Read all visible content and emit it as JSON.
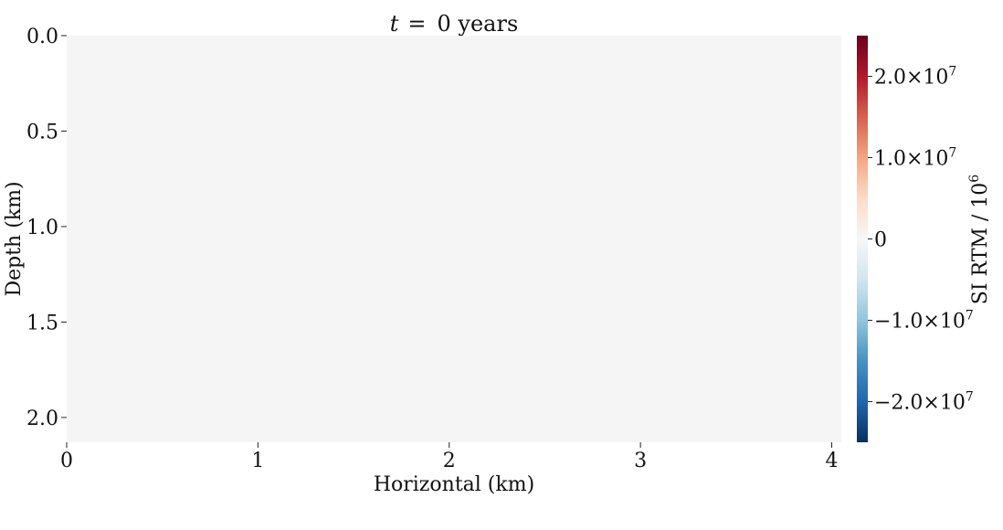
{
  "chart_data": {
    "type": "heatmap",
    "title": "t = 0 years",
    "title_parts": {
      "variable": "t",
      "equals": "=",
      "value_text": "0 years"
    },
    "xlabel": "Horizontal (km)",
    "ylabel": "Depth (km)",
    "xlim": [
      0,
      4.05
    ],
    "ylim": [
      0,
      2.13
    ],
    "y_inverted": true,
    "x_ticks": [
      {
        "value": 0,
        "label": "0"
      },
      {
        "value": 1,
        "label": "1"
      },
      {
        "value": 2,
        "label": "2"
      },
      {
        "value": 3,
        "label": "3"
      },
      {
        "value": 4,
        "label": "4"
      }
    ],
    "y_ticks": [
      {
        "value": 0.0,
        "label": "0.0"
      },
      {
        "value": 0.5,
        "label": "0.5"
      },
      {
        "value": 1.0,
        "label": "1.0"
      },
      {
        "value": 1.5,
        "label": "1.5"
      },
      {
        "value": 2.0,
        "label": "2.0"
      }
    ],
    "field": {
      "description": "uniform field",
      "value": 0,
      "color": "#f5f5f5"
    },
    "colorbar": {
      "label": "SI RTM / 10⁶",
      "label_parts": {
        "base": "SI RTM / 10",
        "exponent": "6"
      },
      "colormap": "RdBu_r",
      "range": [
        -25000000,
        25000000
      ],
      "ticks": [
        {
          "value": 20000000,
          "mantissa": "2.0×10",
          "exponent": "7"
        },
        {
          "value": 10000000,
          "mantissa": "1.0×10",
          "exponent": "7"
        },
        {
          "value": 0,
          "mantissa": "0",
          "exponent": ""
        },
        {
          "value": -10000000,
          "mantissa": "−1.0×10",
          "exponent": "7"
        },
        {
          "value": -20000000,
          "mantissa": "−2.0×10",
          "exponent": "7"
        }
      ],
      "colors": [
        "#053061",
        "#2166ac",
        "#4393c3",
        "#92c5de",
        "#d1e5f0",
        "#f7f7f7",
        "#fddbc7",
        "#f4a582",
        "#d6604d",
        "#b2182b",
        "#67001f"
      ]
    }
  }
}
